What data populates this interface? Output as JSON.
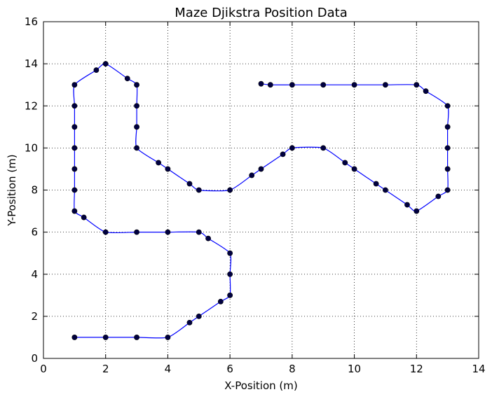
{
  "chart_data": {
    "type": "line",
    "title": "Maze Djikstra Position Data",
    "xlabel": "X-Position (m)",
    "ylabel": "Y-Position (m)",
    "xlim": [
      0,
      14
    ],
    "ylim": [
      0,
      16
    ],
    "xticks": [
      0,
      2,
      4,
      6,
      8,
      10,
      12,
      14
    ],
    "yticks": [
      0,
      2,
      4,
      6,
      8,
      10,
      12,
      14,
      16
    ],
    "grid": true,
    "grid_style": "dotted",
    "line_color": "#0000ff",
    "marker_color": "#000040",
    "series": [
      {
        "values": [
          [
            1,
            1
          ],
          [
            2,
            1
          ],
          [
            3,
            1
          ],
          [
            4,
            1
          ],
          [
            4.7,
            1.7
          ],
          [
            5,
            2
          ],
          [
            5.7,
            2.7
          ],
          [
            6,
            3
          ],
          [
            6,
            4
          ],
          [
            6,
            5
          ],
          [
            5.3,
            5.7
          ],
          [
            5,
            6
          ],
          [
            4,
            6
          ],
          [
            3,
            6
          ],
          [
            2,
            6
          ],
          [
            1.3,
            6.7
          ],
          [
            1,
            7
          ],
          [
            1,
            8
          ],
          [
            1,
            9
          ],
          [
            1,
            10
          ],
          [
            1,
            11
          ],
          [
            1,
            12
          ],
          [
            1,
            13
          ],
          [
            1.7,
            13.7
          ],
          [
            2,
            14
          ],
          [
            2.7,
            13.3
          ],
          [
            3,
            13
          ],
          [
            3,
            12
          ],
          [
            3,
            11
          ],
          [
            3,
            10
          ],
          [
            3.7,
            9.3
          ],
          [
            4,
            9
          ],
          [
            4.7,
            8.3
          ],
          [
            5,
            8
          ],
          [
            6,
            8
          ],
          [
            6.7,
            8.7
          ],
          [
            7,
            9
          ],
          [
            7.7,
            9.7
          ],
          [
            8,
            10
          ],
          [
            9,
            10
          ],
          [
            9.7,
            9.3
          ],
          [
            10,
            9
          ],
          [
            10.7,
            8.3
          ],
          [
            11,
            8
          ],
          [
            11.7,
            7.3
          ],
          [
            12,
            7
          ],
          [
            12.7,
            7.7
          ],
          [
            13,
            8
          ],
          [
            13,
            9
          ],
          [
            13,
            10
          ],
          [
            13,
            11
          ],
          [
            13,
            12
          ],
          [
            12.3,
            12.7
          ],
          [
            12,
            13
          ],
          [
            11,
            13
          ],
          [
            10,
            13
          ],
          [
            9,
            13
          ],
          [
            8,
            13
          ],
          [
            7.3,
            13
          ],
          [
            7,
            13.05
          ]
        ]
      }
    ]
  }
}
